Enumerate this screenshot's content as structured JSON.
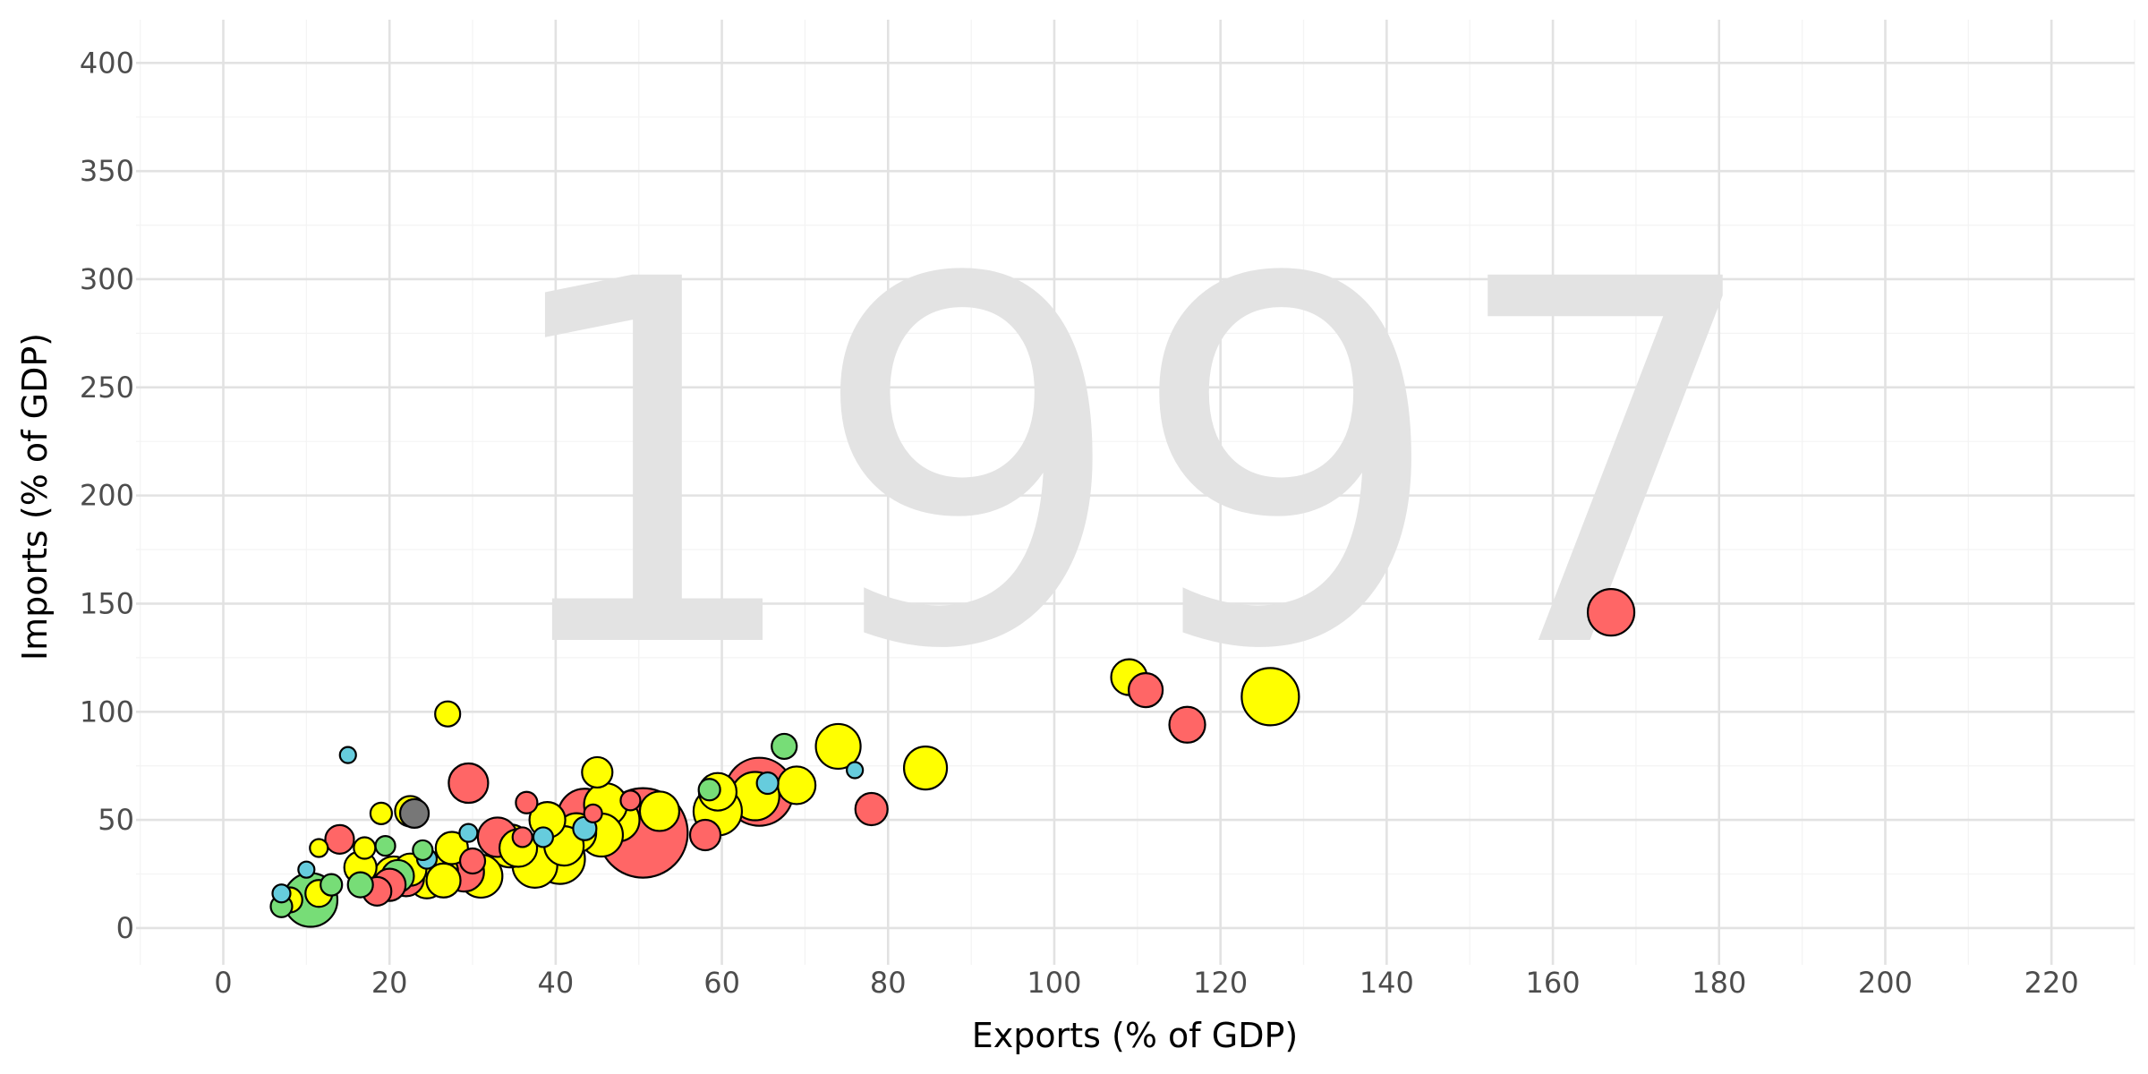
{
  "chart_data": {
    "type": "scatter",
    "xlabel": "Exports (% of GDP)",
    "ylabel": "Imports (% of GDP)",
    "watermark_label": "1997",
    "xlim": [
      -10.5,
      230
    ],
    "ylim": [
      -17,
      420
    ],
    "xticks": [
      "0",
      "20",
      "40",
      "60",
      "80",
      "100",
      "120",
      "140",
      "160",
      "180",
      "200",
      "220"
    ],
    "yticks": [
      "0",
      "50",
      "100",
      "150",
      "200",
      "250",
      "300",
      "350",
      "400"
    ],
    "grid": true,
    "legend": "none",
    "colors": {
      "red": "#ff6666",
      "yellow": "#ffff00",
      "green": "#77dd77",
      "blue": "#66ccdd",
      "gray": "#777777"
    },
    "points": [
      {
        "x": 167,
        "y": 146,
        "size": 26,
        "color": "red"
      },
      {
        "x": 126,
        "y": 107,
        "size": 32,
        "color": "yellow"
      },
      {
        "x": 116,
        "y": 94,
        "size": 20,
        "color": "red"
      },
      {
        "x": 111,
        "y": 110,
        "size": 19,
        "color": "red"
      },
      {
        "x": 109,
        "y": 116,
        "size": 20,
        "color": "yellow"
      },
      {
        "x": 84.5,
        "y": 74,
        "size": 24,
        "color": "yellow"
      },
      {
        "x": 78,
        "y": 55,
        "size": 18,
        "color": "red"
      },
      {
        "x": 76,
        "y": 73,
        "size": 9,
        "color": "blue"
      },
      {
        "x": 74,
        "y": 84,
        "size": 25,
        "color": "yellow"
      },
      {
        "x": 69,
        "y": 66,
        "size": 21,
        "color": "yellow"
      },
      {
        "x": 67.5,
        "y": 84,
        "size": 14,
        "color": "green"
      },
      {
        "x": 65.5,
        "y": 67,
        "size": 12,
        "color": "blue"
      },
      {
        "x": 64.5,
        "y": 63,
        "size": 38,
        "color": "red"
      },
      {
        "x": 64,
        "y": 61,
        "size": 27,
        "color": "yellow"
      },
      {
        "x": 59.5,
        "y": 63,
        "size": 21,
        "color": "yellow"
      },
      {
        "x": 58.5,
        "y": 64,
        "size": 12,
        "color": "green"
      },
      {
        "x": 59.5,
        "y": 54,
        "size": 27,
        "color": "yellow"
      },
      {
        "x": 58,
        "y": 43,
        "size": 17,
        "color": "red"
      },
      {
        "x": 52.5,
        "y": 54,
        "size": 22,
        "color": "yellow"
      },
      {
        "x": 50.5,
        "y": 44,
        "size": 50,
        "color": "red"
      },
      {
        "x": 49,
        "y": 59,
        "size": 11,
        "color": "red"
      },
      {
        "x": 47.5,
        "y": 50,
        "size": 24,
        "color": "yellow"
      },
      {
        "x": 46,
        "y": 57,
        "size": 24,
        "color": "yellow"
      },
      {
        "x": 45.5,
        "y": 43,
        "size": 24,
        "color": "yellow"
      },
      {
        "x": 45,
        "y": 72,
        "size": 17,
        "color": "yellow"
      },
      {
        "x": 44.5,
        "y": 53,
        "size": 10,
        "color": "red"
      },
      {
        "x": 43.5,
        "y": 52,
        "size": 30,
        "color": "red"
      },
      {
        "x": 43.5,
        "y": 46,
        "size": 13,
        "color": "blue"
      },
      {
        "x": 42.5,
        "y": 44,
        "size": 22,
        "color": "yellow"
      },
      {
        "x": 41,
        "y": 38,
        "size": 22,
        "color": "yellow"
      },
      {
        "x": 40.5,
        "y": 32,
        "size": 28,
        "color": "yellow"
      },
      {
        "x": 39,
        "y": 50,
        "size": 20,
        "color": "yellow"
      },
      {
        "x": 38.5,
        "y": 42,
        "size": 11,
        "color": "blue"
      },
      {
        "x": 37.5,
        "y": 29,
        "size": 25,
        "color": "yellow"
      },
      {
        "x": 36.5,
        "y": 58,
        "size": 12,
        "color": "red"
      },
      {
        "x": 36,
        "y": 42,
        "size": 11,
        "color": "red"
      },
      {
        "x": 35.5,
        "y": 37,
        "size": 21,
        "color": "yellow"
      },
      {
        "x": 34.5,
        "y": 38,
        "size": 24,
        "color": "yellow"
      },
      {
        "x": 33,
        "y": 42,
        "size": 22,
        "color": "red"
      },
      {
        "x": 31,
        "y": 24,
        "size": 24,
        "color": "yellow"
      },
      {
        "x": 30,
        "y": 31,
        "size": 14,
        "color": "red"
      },
      {
        "x": 29.5,
        "y": 67,
        "size": 22,
        "color": "red"
      },
      {
        "x": 29.5,
        "y": 44,
        "size": 10,
        "color": "blue"
      },
      {
        "x": 29,
        "y": 26,
        "size": 22,
        "color": "red"
      },
      {
        "x": 27.5,
        "y": 37,
        "size": 18,
        "color": "yellow"
      },
      {
        "x": 27,
        "y": 99,
        "size": 14,
        "color": "yellow"
      },
      {
        "x": 26.5,
        "y": 22,
        "size": 19,
        "color": "yellow"
      },
      {
        "x": 26,
        "y": 26,
        "size": 21,
        "color": "yellow"
      },
      {
        "x": 24.5,
        "y": 22,
        "size": 20,
        "color": "yellow"
      },
      {
        "x": 24.5,
        "y": 32,
        "size": 11,
        "color": "blue"
      },
      {
        "x": 24,
        "y": 36,
        "size": 11,
        "color": "green"
      },
      {
        "x": 23,
        "y": 53,
        "size": 16,
        "color": "gray"
      },
      {
        "x": 22.5,
        "y": 54,
        "size": 17,
        "color": "yellow"
      },
      {
        "x": 22.5,
        "y": 27,
        "size": 18,
        "color": "yellow"
      },
      {
        "x": 22,
        "y": 23,
        "size": 20,
        "color": "red"
      },
      {
        "x": 21,
        "y": 24,
        "size": 18,
        "color": "green"
      },
      {
        "x": 20.5,
        "y": 24,
        "size": 22,
        "color": "yellow"
      },
      {
        "x": 20,
        "y": 20,
        "size": 18,
        "color": "red"
      },
      {
        "x": 19.5,
        "y": 38,
        "size": 11,
        "color": "green"
      },
      {
        "x": 19,
        "y": 53,
        "size": 12,
        "color": "yellow"
      },
      {
        "x": 18.5,
        "y": 17,
        "size": 16,
        "color": "red"
      },
      {
        "x": 17,
        "y": 37,
        "size": 12,
        "color": "yellow"
      },
      {
        "x": 16.5,
        "y": 28,
        "size": 18,
        "color": "yellow"
      },
      {
        "x": 16.5,
        "y": 20,
        "size": 14,
        "color": "green"
      },
      {
        "x": 15,
        "y": 80,
        "size": 9,
        "color": "blue"
      },
      {
        "x": 14,
        "y": 41,
        "size": 16,
        "color": "red"
      },
      {
        "x": 13,
        "y": 20,
        "size": 12,
        "color": "green"
      },
      {
        "x": 11.5,
        "y": 16,
        "size": 15,
        "color": "yellow"
      },
      {
        "x": 11.5,
        "y": 37,
        "size": 10,
        "color": "yellow"
      },
      {
        "x": 10,
        "y": 27,
        "size": 9,
        "color": "blue"
      },
      {
        "x": 8,
        "y": 13,
        "size": 14,
        "color": "yellow"
      },
      {
        "x": 7,
        "y": 16,
        "size": 10,
        "color": "blue"
      },
      {
        "x": 7,
        "y": 10,
        "size": 12,
        "color": "green"
      },
      {
        "x": 10.5,
        "y": 13,
        "size": 30,
        "color": "green"
      }
    ]
  }
}
